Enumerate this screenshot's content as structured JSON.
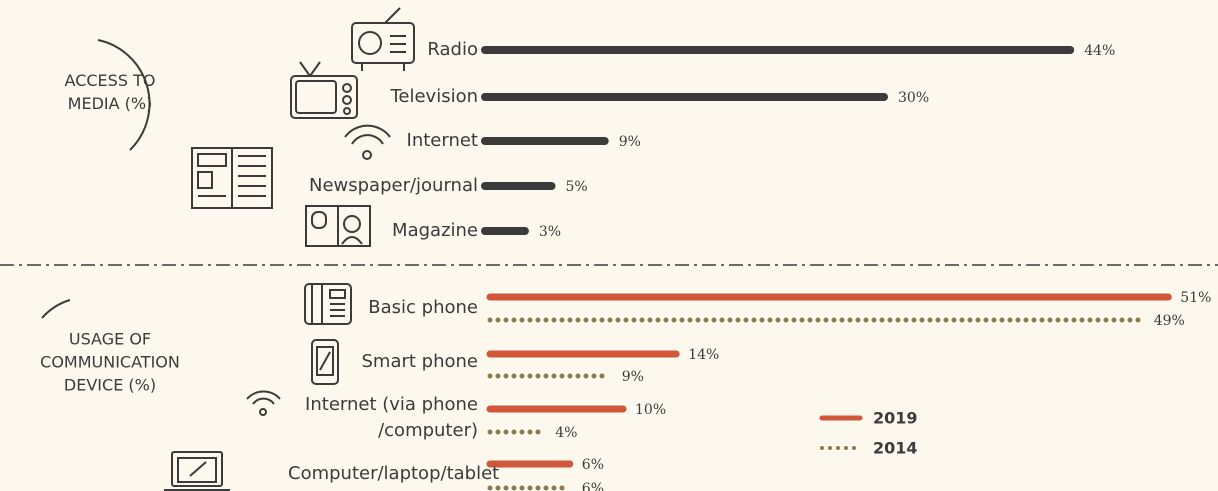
{
  "chart_data": [
    {
      "type": "bar",
      "title": "ACCESS TO MEDIA (%)",
      "categories": [
        "Radio",
        "Television",
        "Internet",
        "Newspaper/journal",
        "Magazine"
      ],
      "values": [
        44,
        30,
        9,
        5,
        3
      ],
      "value_labels": [
        "44%",
        "30%",
        "9%",
        "5%",
        "3%"
      ],
      "color": "#3b3b3b"
    },
    {
      "type": "bar",
      "title": "USAGE OF COMMUNICATION DEVICE (%)",
      "categories": [
        "Basic phone",
        "Smart phone",
        "Internet (via phone /computer)",
        "Computer/laptop/tablet"
      ],
      "series": [
        {
          "name": "2019",
          "color": "#d0573a",
          "values": [
            51,
            14,
            10,
            6
          ],
          "value_labels": [
            "51%",
            "14%",
            "10%",
            "6%"
          ]
        },
        {
          "name": "2014",
          "color": "#8c7a4c",
          "values": [
            49,
            9,
            4,
            6
          ],
          "value_labels": [
            "49%",
            "9%",
            "4%",
            "6%"
          ]
        }
      ]
    }
  ]
}
